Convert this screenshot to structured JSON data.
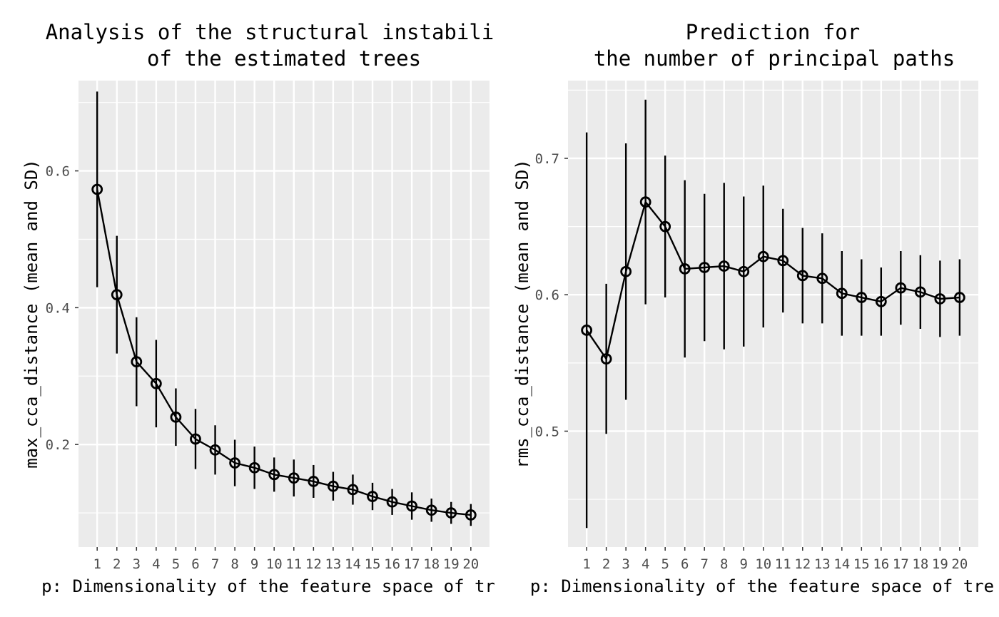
{
  "chart_data": [
    {
      "type": "line",
      "error_bars": true,
      "title_lines": [
        "Analysis of the structural instabili",
        "of the estimated trees"
      ],
      "xlabel": "p: Dimensionality of the feature space of tr",
      "ylabel": "max_cca_distance (mean and SD)",
      "x": [
        1,
        2,
        3,
        4,
        5,
        6,
        7,
        8,
        9,
        10,
        11,
        12,
        13,
        14,
        15,
        16,
        17,
        18,
        19,
        20
      ],
      "mean": [
        0.573,
        0.419,
        0.321,
        0.289,
        0.24,
        0.208,
        0.192,
        0.173,
        0.166,
        0.156,
        0.151,
        0.146,
        0.139,
        0.134,
        0.124,
        0.116,
        0.11,
        0.104,
        0.1,
        0.097
      ],
      "sd": [
        0.143,
        0.086,
        0.065,
        0.064,
        0.042,
        0.044,
        0.036,
        0.034,
        0.031,
        0.025,
        0.027,
        0.024,
        0.021,
        0.022,
        0.02,
        0.019,
        0.02,
        0.017,
        0.016,
        0.016
      ],
      "xlim": [
        0.05,
        20.95
      ],
      "ylim": [
        0.05,
        0.732
      ],
      "yticks": [
        0.2,
        0.4,
        0.6
      ],
      "ytick_labels": [
        "0.2",
        "0.4",
        "0.6"
      ],
      "grid": true,
      "background": "#ebebeb",
      "line_color": "#000000"
    },
    {
      "type": "line",
      "error_bars": true,
      "title_lines": [
        "Prediction for",
        "the number of principal paths"
      ],
      "xlabel": "p: Dimensionality of the feature space of tre",
      "ylabel": "rms_cca_distance (mean and SD)",
      "x": [
        1,
        2,
        3,
        4,
        5,
        6,
        7,
        8,
        9,
        10,
        11,
        12,
        13,
        14,
        15,
        16,
        17,
        18,
        19,
        20
      ],
      "mean": [
        0.574,
        0.553,
        0.617,
        0.668,
        0.65,
        0.619,
        0.62,
        0.621,
        0.617,
        0.628,
        0.625,
        0.614,
        0.612,
        0.601,
        0.598,
        0.595,
        0.605,
        0.602,
        0.597,
        0.598
      ],
      "sd": [
        0.145,
        0.055,
        0.094,
        0.075,
        0.052,
        0.065,
        0.054,
        0.061,
        0.055,
        0.052,
        0.038,
        0.035,
        0.033,
        0.031,
        0.028,
        0.025,
        0.027,
        0.027,
        0.028,
        0.028
      ],
      "xlim": [
        0.05,
        20.95
      ],
      "ylim": [
        0.415,
        0.757
      ],
      "yticks": [
        0.5,
        0.6,
        0.7
      ],
      "ytick_labels": [
        "0.5",
        "0.6",
        "0.7"
      ],
      "grid": true,
      "background": "#ebebeb",
      "line_color": "#000000"
    }
  ]
}
